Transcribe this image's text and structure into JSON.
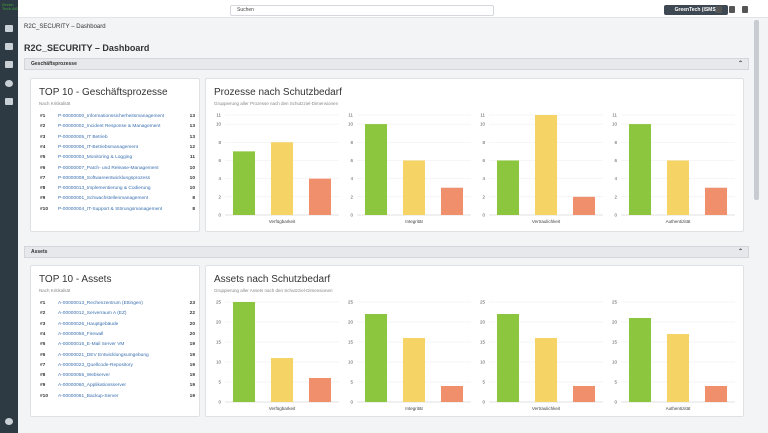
{
  "header": {
    "logo": "Green Tech AG",
    "search_placeholder": "Suchen",
    "organization": "GreenTech (ISMS)",
    "avatar": "AA"
  },
  "breadcrumb": "R2C_SECURITY – Dashboard",
  "page_title": "R2C_SECURITY – Dashboard",
  "bar_colors": [
    "#8cc63f",
    "#f6d365",
    "#ef8f6b"
  ],
  "sections": [
    {
      "title": "Geschäftsprozesse",
      "list_title": "TOP 10 - Geschäftsprozesse",
      "list_subtitle": "Nach Kritikalität",
      "list": [
        {
          "rank": "#1",
          "name": "P-00000000_Informationssicherheitsmanagement",
          "count": 13
        },
        {
          "rank": "#2",
          "name": "P-00000002_Incident Response & Management",
          "count": 13
        },
        {
          "rank": "#3",
          "name": "P-00000005_IT Betrieb",
          "count": 13
        },
        {
          "rank": "#4",
          "name": "P-00000006_IT-Betriebsmanagement",
          "count": 12
        },
        {
          "rank": "#5",
          "name": "P-00000003_Monitoring & Logging",
          "count": 11
        },
        {
          "rank": "#6",
          "name": "P-00000007_Patch- und Release-Management",
          "count": 10
        },
        {
          "rank": "#7",
          "name": "P-00000008_Softwareentwicklungsprozess",
          "count": 10
        },
        {
          "rank": "#8",
          "name": "P-00000013_Implementierung & Codierung",
          "count": 10
        },
        {
          "rank": "#9",
          "name": "P-00000001_Schwachstellenmanagement",
          "count": 8
        },
        {
          "rank": "#10",
          "name": "P-00000004_IT-Support & Störungsmanagement",
          "count": 8
        }
      ],
      "chart_title": "Prozesse nach Schutzbedarf",
      "chart_subtitle": "Gruppierung aller Prozesse nach den Schutzziel-Dimensionen",
      "charts": [
        {
          "type": "bar",
          "x_label": "Verfügbarkeit",
          "values": [
            7,
            8,
            4
          ],
          "ylim": [
            0,
            11
          ],
          "yticks": [
            0,
            2,
            4,
            6,
            8,
            10,
            11
          ]
        },
        {
          "type": "bar",
          "x_label": "Integrität",
          "values": [
            10,
            6,
            3
          ],
          "ylim": [
            0,
            11
          ],
          "yticks": [
            0,
            2,
            4,
            6,
            8,
            10,
            11
          ]
        },
        {
          "type": "bar",
          "x_label": "Vertraulichkeit",
          "values": [
            6,
            11,
            2
          ],
          "ylim": [
            0,
            11
          ],
          "yticks": [
            0,
            2,
            4,
            6,
            8,
            10,
            11
          ]
        },
        {
          "type": "bar",
          "x_label": "Authentizität",
          "values": [
            10,
            6,
            3
          ],
          "ylim": [
            0,
            11
          ],
          "yticks": [
            0,
            2,
            4,
            6,
            8,
            10,
            11
          ]
        }
      ]
    },
    {
      "title": "Assets",
      "list_title": "TOP 10 - Assets",
      "list_subtitle": "Nach Kritikalität",
      "list": [
        {
          "rank": "#1",
          "name": "A-00000013_Rechenzentrum (Ettingen)",
          "count": 23
        },
        {
          "rank": "#2",
          "name": "A-00000012_Serverraum A (EZ)",
          "count": 22
        },
        {
          "rank": "#3",
          "name": "A-00000026_Hauptgebäude",
          "count": 20
        },
        {
          "rank": "#4",
          "name": "A-00000058_Firewall",
          "count": 20
        },
        {
          "rank": "#5",
          "name": "A-00000016_E-Mail Server VM",
          "count": 19
        },
        {
          "rank": "#6",
          "name": "A-00000021_DEV Entwicklungsumgebung",
          "count": 19
        },
        {
          "rank": "#7",
          "name": "A-00000023_Quellcode-Repository",
          "count": 19
        },
        {
          "rank": "#8",
          "name": "A-00000055_Webserver",
          "count": 19
        },
        {
          "rank": "#9",
          "name": "A-00000060_Applikationsserver",
          "count": 19
        },
        {
          "rank": "#10",
          "name": "A-00000061_Backup-Server",
          "count": 19
        }
      ],
      "chart_title": "Assets nach Schutzbedarf",
      "chart_subtitle": "Gruppierung aller Assets nach den Schutzziel-Dimensionen",
      "charts": [
        {
          "type": "bar",
          "x_label": "Verfügbarkeit",
          "values": [
            25,
            11,
            6
          ],
          "ylim": [
            0,
            25
          ],
          "yticks": [
            0,
            5,
            10,
            15,
            20,
            25
          ]
        },
        {
          "type": "bar",
          "x_label": "Integrität",
          "values": [
            22,
            16,
            4
          ],
          "ylim": [
            0,
            25
          ],
          "yticks": [
            0,
            5,
            10,
            15,
            20,
            25
          ]
        },
        {
          "type": "bar",
          "x_label": "Vertraulichkeit",
          "values": [
            22,
            16,
            4
          ],
          "ylim": [
            0,
            25
          ],
          "yticks": [
            0,
            5,
            10,
            15,
            20,
            25
          ]
        },
        {
          "type": "bar",
          "x_label": "Authentizität",
          "values": [
            21,
            17,
            4
          ],
          "ylim": [
            0,
            25
          ],
          "yticks": [
            0,
            5,
            10,
            15,
            20,
            25
          ]
        }
      ]
    }
  ]
}
